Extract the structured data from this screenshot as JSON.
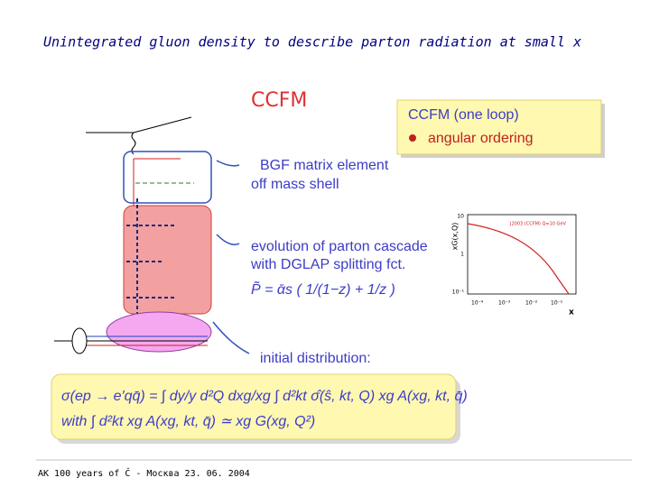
{
  "title": "Unintegrated gluon density to describe parton radiation at small x",
  "slide": {
    "heading": "CCFM",
    "box": {
      "title": "CCFM (one loop)",
      "item": "angular ordering"
    },
    "labels": [
      "BGF matrix element",
      "off mass shell",
      "evolution of parton cascade",
      "with DGLAP splitting fct.",
      "P̃ = ᾱs ( 1/(1−z) + 1/z )",
      "initial distribution:"
    ],
    "formula": [
      "σ(ep → e′qq̄) = ∫ dy/y d²Q dxg/xg ∫ d²kt σ̂(ŝ, kt, Q) xg A(xg, kt, q̄)",
      "with ∫ d²kt xg A(xg, kt, q̄) ≃ xg G(xg, Q²)"
    ],
    "inset": {
      "ylabel": "xG(x,Q)",
      "xlabel": "x",
      "legend": "J2003 (CCFM)  Q=10 GeV",
      "xticks": [
        "10⁻⁴",
        "10⁻³",
        "10⁻²",
        "10⁻¹"
      ],
      "yticks": [
        "10",
        "1",
        "10⁻¹"
      ]
    }
  },
  "footer": "AK 100 years of Č - Москва 23. 06. 2004"
}
